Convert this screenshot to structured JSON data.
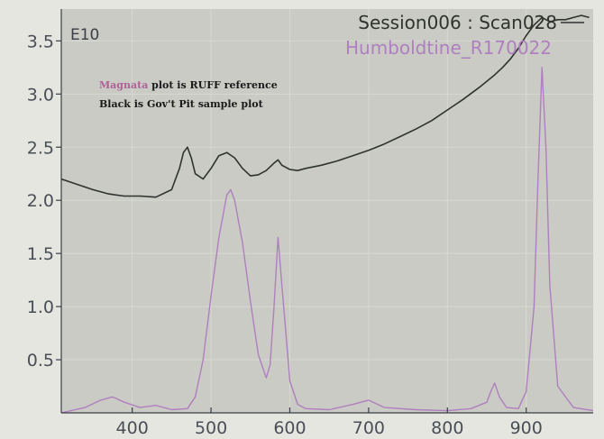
{
  "chart_data": {
    "type": "line",
    "multiplier_label": "E10",
    "xlim": [
      310,
      985
    ],
    "ylim": [
      0,
      3.8
    ],
    "x_ticks": [
      400,
      500,
      600,
      700,
      800,
      900
    ],
    "x_tick_labels": [
      "400",
      "500",
      "600",
      "700",
      "800",
      "900"
    ],
    "y_ticks": [
      0.5,
      1.0,
      1.5,
      2.0,
      2.5,
      3.0,
      3.5
    ],
    "y_tick_labels": [
      "0.5",
      "1.0",
      "1.5",
      "2.0",
      "2.5",
      "3.0",
      "3.5"
    ],
    "grid": true,
    "legend_position": "top-right",
    "annotations": [
      {
        "highlight": "Magnata",
        "text": " plot is RUFF reference",
        "highlight_color": "#b0609a",
        "color": "#1a1a1a"
      },
      {
        "highlight": "",
        "text": "Black is Gov't Pit sample plot",
        "highlight_color": "#1a1a1a",
        "color": "#1a1a1a"
      }
    ],
    "series": [
      {
        "name": "Session006 : Scan028",
        "color": "#2f332f",
        "x": [
          310,
          330,
          350,
          370,
          390,
          410,
          430,
          450,
          460,
          465,
          470,
          475,
          480,
          490,
          500,
          510,
          520,
          530,
          540,
          550,
          560,
          570,
          580,
          585,
          590,
          600,
          610,
          620,
          640,
          660,
          680,
          700,
          720,
          740,
          760,
          780,
          800,
          820,
          840,
          860,
          870,
          880,
          890,
          900,
          910,
          920,
          930,
          940,
          950,
          960,
          970,
          980
        ],
        "y": [
          2.2,
          2.15,
          2.1,
          2.06,
          2.04,
          2.04,
          2.03,
          2.1,
          2.3,
          2.45,
          2.5,
          2.4,
          2.25,
          2.2,
          2.3,
          2.42,
          2.45,
          2.4,
          2.3,
          2.23,
          2.24,
          2.28,
          2.35,
          2.38,
          2.33,
          2.29,
          2.28,
          2.3,
          2.33,
          2.37,
          2.42,
          2.47,
          2.53,
          2.6,
          2.67,
          2.75,
          2.85,
          2.95,
          3.06,
          3.18,
          3.25,
          3.33,
          3.43,
          3.55,
          3.65,
          3.72,
          3.68,
          3.7,
          3.7,
          3.72,
          3.74,
          3.72
        ]
      },
      {
        "name": "Humboldtine_R170022",
        "color": "#b07fbf",
        "x": [
          310,
          340,
          360,
          375,
          390,
          410,
          430,
          450,
          470,
          480,
          490,
          500,
          510,
          520,
          525,
          530,
          540,
          550,
          560,
          570,
          575,
          580,
          585,
          590,
          600,
          610,
          620,
          650,
          680,
          700,
          720,
          760,
          800,
          830,
          850,
          855,
          860,
          866,
          875,
          890,
          900,
          910,
          915,
          920,
          925,
          930,
          940,
          960,
          985
        ],
        "y": [
          0.0,
          0.05,
          0.12,
          0.15,
          0.1,
          0.05,
          0.07,
          0.03,
          0.04,
          0.15,
          0.5,
          1.1,
          1.65,
          2.05,
          2.1,
          2.0,
          1.6,
          1.05,
          0.55,
          0.33,
          0.45,
          1.0,
          1.65,
          1.2,
          0.3,
          0.08,
          0.04,
          0.03,
          0.08,
          0.12,
          0.05,
          0.03,
          0.02,
          0.04,
          0.1,
          0.2,
          0.28,
          0.15,
          0.05,
          0.04,
          0.2,
          1.0,
          2.2,
          3.25,
          2.5,
          1.2,
          0.25,
          0.05,
          0.02
        ]
      }
    ]
  }
}
